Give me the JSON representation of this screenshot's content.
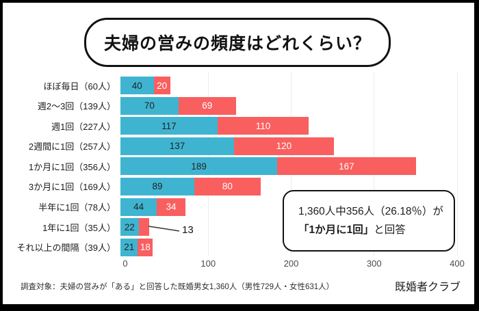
{
  "frame": {
    "background": "#ffffff",
    "border_color": "#000000"
  },
  "title": {
    "text": "夫婦の営みの頻度はどれくらい？"
  },
  "chart_data": {
    "type": "bar",
    "orientation": "horizontal",
    "stacked": true,
    "grid": "vertical",
    "categories": [
      "ほぼ毎日（60人）",
      "週2～3回（139人）",
      "週1回（227人）",
      "2週間に1回（257人）",
      "1か月に1回（356人）",
      "3か月に1回（169人）",
      "半年に1回（78人）",
      "1年に1回（35人）",
      "それ以上の間隔（39人）"
    ],
    "series": [
      {
        "key": "blue",
        "color": "#3fb4d1",
        "values": [
          40,
          70,
          117,
          137,
          189,
          89,
          44,
          22,
          21
        ]
      },
      {
        "key": "red",
        "color": "#f95f5f",
        "values": [
          20,
          69,
          110,
          120,
          167,
          80,
          34,
          13,
          18
        ]
      }
    ],
    "xlim": [
      0,
      400
    ],
    "xticks": [
      0,
      100,
      200,
      300,
      400
    ],
    "callout": {
      "row_index": 7,
      "series_index": 1,
      "label": "13"
    }
  },
  "annotation": {
    "line1": "1,360人中356人（26.18％）が",
    "line2_bold": "「1か月に1回」",
    "line2_rest": "と回答"
  },
  "footer": {
    "note": "調査対象：夫婦の営みが「ある」と回答した既婚男女1,360人（男性729人・女性631人）",
    "brand": "既婚者クラブ"
  },
  "colors": {
    "blue_bar": "#3fb4d1",
    "red_bar": "#f95f5f",
    "grid": "#ececec",
    "value_on_blue": "#232323",
    "value_on_red": "#ffffff"
  }
}
